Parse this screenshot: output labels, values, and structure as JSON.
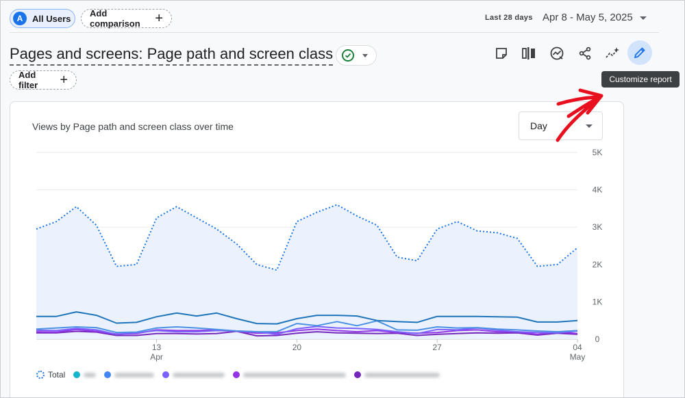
{
  "header": {
    "segment": {
      "avatar_letter": "A",
      "label": "All Users"
    },
    "add_comparison": "Add comparison",
    "date": {
      "label": "Last 28 days",
      "range": "Apr 8 - May 5, 2025"
    }
  },
  "title": "Pages and screens: Page path and screen class",
  "add_filter": "Add filter",
  "toolbar": {
    "icons": [
      "note-icon",
      "compare-columns-icon",
      "insights-icon",
      "share-icon",
      "sparkle-trend-icon",
      "pencil-icon"
    ],
    "tooltip": "Customize report"
  },
  "card": {
    "title": "Views by Page path and screen class over time",
    "granularity": "Day"
  },
  "colors": {
    "total": "#1a73e8",
    "series1": "#12b5cb",
    "series2": "#4285f4",
    "series3": "#7b61ff",
    "series4": "#9334e6",
    "series5": "#7627bb",
    "annotation_arrow": "#e8101e"
  },
  "chart_data": {
    "type": "line",
    "x_ticks": [
      {
        "day": 6,
        "label": "13",
        "sublabel": "Apr"
      },
      {
        "day": 13,
        "label": "20",
        "sublabel": ""
      },
      {
        "day": 20,
        "label": "27",
        "sublabel": ""
      },
      {
        "day": 27,
        "label": "04",
        "sublabel": "May"
      }
    ],
    "y_ticks": [
      "0",
      "1K",
      "2K",
      "3K",
      "4K",
      "5K"
    ],
    "ylim": [
      0,
      5000
    ],
    "grid": true,
    "series": [
      {
        "name": "Total",
        "style": "dotted-area",
        "color": "#1a73e8",
        "values": [
          2950,
          3150,
          3550,
          3050,
          1950,
          2000,
          3250,
          3550,
          3250,
          2950,
          2550,
          2000,
          1850,
          3150,
          3400,
          3600,
          3300,
          3050,
          2200,
          2100,
          2950,
          3150,
          2900,
          2850,
          2700,
          1950,
          2000,
          2450
        ]
      },
      {
        "color": "#1e74b8",
        "values": [
          610,
          610,
          730,
          640,
          430,
          450,
          600,
          700,
          620,
          700,
          550,
          420,
          410,
          550,
          640,
          640,
          620,
          500,
          470,
          450,
          610,
          610,
          610,
          600,
          590,
          460,
          460,
          500
        ]
      },
      {
        "color": "#4a90e2",
        "values": [
          270,
          300,
          330,
          310,
          180,
          190,
          300,
          330,
          300,
          260,
          220,
          200,
          200,
          420,
          360,
          470,
          360,
          490,
          250,
          240,
          330,
          300,
          310,
          270,
          250,
          220,
          200,
          230
        ]
      },
      {
        "color": "#7b61ff",
        "values": [
          240,
          230,
          290,
          250,
          130,
          170,
          230,
          200,
          200,
          230,
          220,
          200,
          130,
          280,
          340,
          300,
          290,
          260,
          200,
          150,
          260,
          250,
          300,
          240,
          200,
          180,
          170,
          220
        ]
      },
      {
        "color": "#9334e6",
        "values": [
          200,
          190,
          260,
          210,
          140,
          150,
          250,
          230,
          230,
          250,
          210,
          160,
          170,
          230,
          270,
          230,
          200,
          230,
          180,
          160,
          180,
          230,
          250,
          200,
          200,
          130,
          200,
          150
        ]
      },
      {
        "color": "#7627bb",
        "values": [
          170,
          170,
          210,
          190,
          100,
          100,
          150,
          150,
          140,
          150,
          210,
          90,
          100,
          160,
          200,
          170,
          160,
          150,
          160,
          100,
          130,
          150,
          170,
          160,
          170,
          110,
          160,
          130
        ]
      }
    ]
  },
  "legend": {
    "total_label": "Total",
    "blurred_items": [
      {
        "color": "#12b5cb",
        "width": 18
      },
      {
        "color": "#4285f4",
        "width": 58
      },
      {
        "color": "#7b61ff",
        "width": 76
      },
      {
        "color": "#9334e6",
        "width": 150
      },
      {
        "color": "#7627bb",
        "width": 110
      }
    ]
  }
}
